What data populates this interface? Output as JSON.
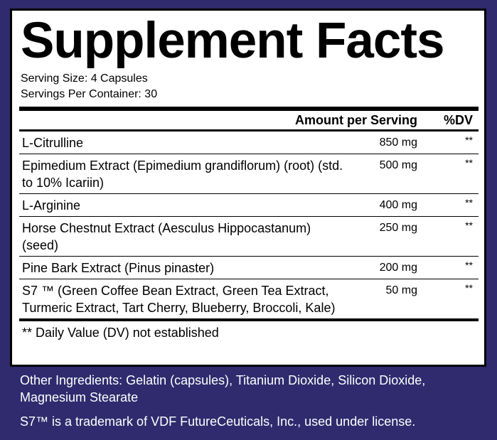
{
  "title": "Supplement Facts",
  "serving_size": "Serving Size: 4 Capsules",
  "servings_per_container": "Servings Per Container: 30",
  "table": {
    "header": [
      "Amount per Serving",
      "%DV"
    ],
    "rows": [
      [
        "L-Citrulline",
        "850 mg",
        "**"
      ],
      [
        "Epimedium Extract (Epimedium grandiflorum) (root) (std. to 10% Icariin)",
        "500 mg",
        "**"
      ],
      [
        "L-Arginine",
        "400 mg",
        "**"
      ],
      [
        "Horse Chestnut Extract (Aesculus Hippocastanum) (seed)",
        "250 mg",
        "**"
      ],
      [
        "Pine Bark Extract (Pinus pinaster)",
        "200 mg",
        "**"
      ],
      [
        "S7 ™ (Green Coffee Bean Extract, Green Tea Extract, Turmeric Extract, Tart Cherry, Blueberry, Broccoli, Kale)",
        "50 mg",
        "**"
      ]
    ]
  },
  "footnote": "** Daily Value (DV) not established",
  "other_ingredients": "Other Ingredients: Gelatin (capsules), Titanium Dioxide, Silicon Dioxide, Magnesium Stearate",
  "trademark": "S7™ is a trademark of VDF FutureCeuticals, Inc., used under license."
}
